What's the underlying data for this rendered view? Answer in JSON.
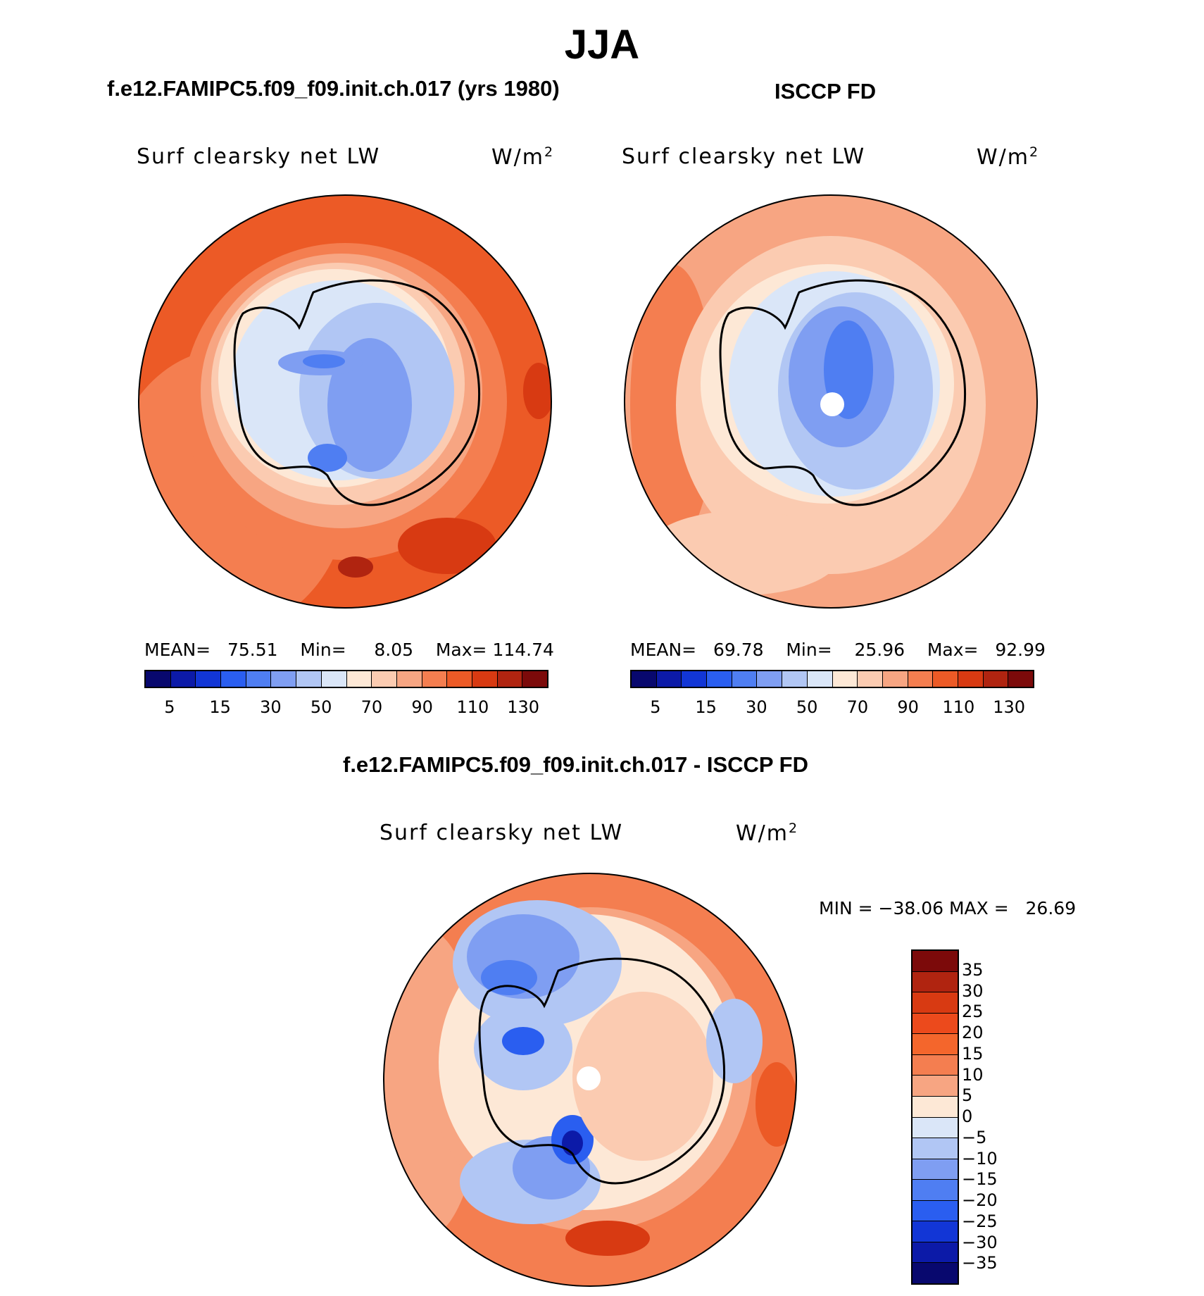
{
  "figure": {
    "season": "JJA",
    "model_title": "f.e12.FAMIPC5.f09_f09.init.ch.017 (yrs 1980)",
    "obs_title": "ISCCP FD",
    "diff_title": "f.e12.FAMIPC5.f09_f09.init.ch.017 - ISCCP FD"
  },
  "panels": {
    "model": {
      "variable": "Surf clearsky net LW",
      "units": "W/m",
      "units_exp": "2",
      "mean_label": "MEAN=",
      "mean": "75.51",
      "min_label": "Min=",
      "min": "8.05",
      "max_label": "Max=",
      "max": "114.74"
    },
    "obs": {
      "variable": "Surf clearsky net LW",
      "units": "W/m",
      "units_exp": "2",
      "mean_label": "MEAN=",
      "mean": "69.78",
      "min_label": "Min=",
      "min": "25.96",
      "max_label": "Max=",
      "max": "92.99"
    },
    "diff": {
      "variable": "Surf clearsky net LW",
      "units": "W/m",
      "units_exp": "2",
      "min_label": "MIN =",
      "min": "−38.06",
      "max_label": "MAX =",
      "max": "26.69"
    }
  },
  "colorbars": {
    "abs_ticks": [
      "5",
      "15",
      "30",
      "50",
      "70",
      "90",
      "110",
      "130"
    ],
    "abs_colors": [
      "#08086e",
      "#0c1aa8",
      "#1236d6",
      "#2a5ef0",
      "#4f7ef2",
      "#7f9ef2",
      "#b1c6f4",
      "#dae6f8",
      "#fde8d6",
      "#fbcbb1",
      "#f7a582",
      "#f47e50",
      "#ec5a26",
      "#d83a12",
      "#b02410",
      "#7c0a0a"
    ],
    "diff_ticks": [
      "35",
      "30",
      "25",
      "20",
      "15",
      "10",
      "5",
      "0",
      "−5",
      "−10",
      "−15",
      "−20",
      "−25",
      "−30",
      "−35"
    ],
    "diff_colors": [
      "#7c0a0a",
      "#b02410",
      "#d83a12",
      "#ec4a1c",
      "#f4662c",
      "#f47e50",
      "#f7a582",
      "#fde8d6",
      "#dae6f8",
      "#b1c6f4",
      "#7f9ef2",
      "#4f7ef2",
      "#2a5ef0",
      "#1236d6",
      "#0c1aa8",
      "#08086e"
    ]
  },
  "map_colors": {
    "model_ring": [
      "#ec5a26",
      "#f47e50",
      "#f7a582",
      "#fbcbb1",
      "#fde8d6",
      "#dae6f8",
      "#b1c6f4",
      "#7f9ef2"
    ],
    "obs_ring": [
      "#f7a582",
      "#fbcbb1",
      "#fde8d6",
      "#dae6f8",
      "#b1c6f4",
      "#7f9ef2",
      "#4f7ef2"
    ],
    "diff_ring": [
      "#ec5a26",
      "#f47e50",
      "#f7a582",
      "#fbcbb1",
      "#fde8d6",
      "#dae6f8"
    ]
  }
}
